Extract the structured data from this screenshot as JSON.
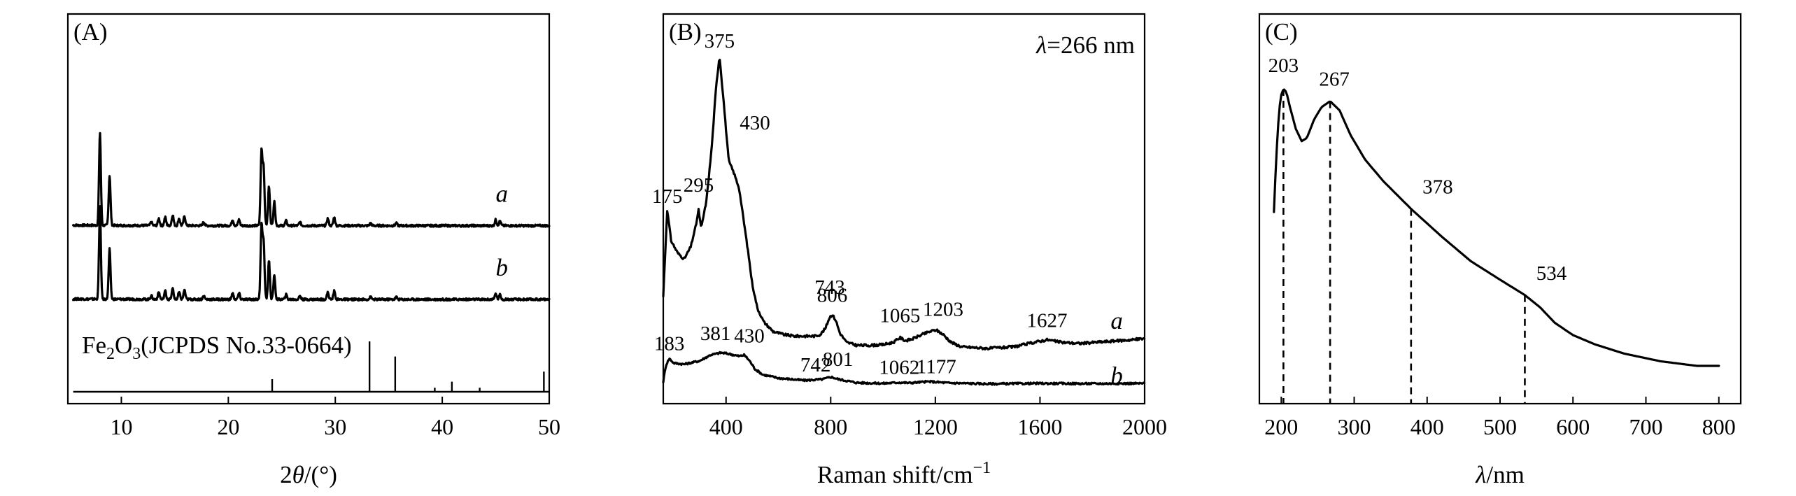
{
  "chart_data": [
    {
      "id": "A",
      "panel_label": "(A)",
      "type": "line",
      "xlabel_prefix": "2",
      "xlabel_var": "θ",
      "xlabel_unit": "/(°)",
      "ylabel": "",
      "xlim": [
        5,
        50
      ],
      "xticks": [
        10,
        20,
        30,
        40,
        50
      ],
      "grid": false,
      "series": [
        {
          "name": "a",
          "baseline": 0.62,
          "peaks": [
            [
              8.0,
              0.78
            ],
            [
              8.9,
              0.42
            ],
            [
              12.8,
              0.03
            ],
            [
              13.5,
              0.06
            ],
            [
              14.1,
              0.07
            ],
            [
              14.8,
              0.09
            ],
            [
              15.4,
              0.06
            ],
            [
              15.9,
              0.08
            ],
            [
              17.7,
              0.03
            ],
            [
              20.4,
              0.05
            ],
            [
              21.0,
              0.05
            ],
            [
              23.1,
              0.62
            ],
            [
              23.3,
              0.48
            ],
            [
              23.8,
              0.33
            ],
            [
              24.3,
              0.2
            ],
            [
              25.4,
              0.04
            ],
            [
              26.7,
              0.03
            ],
            [
              29.3,
              0.06
            ],
            [
              29.9,
              0.07
            ],
            [
              33.3,
              0.02
            ],
            [
              35.7,
              0.02
            ],
            [
              45.0,
              0.05
            ],
            [
              45.4,
              0.04
            ]
          ]
        },
        {
          "name": "b",
          "baseline": 0.0,
          "peaks": [
            [
              8.0,
              0.78
            ],
            [
              8.9,
              0.42
            ],
            [
              12.8,
              0.03
            ],
            [
              13.5,
              0.06
            ],
            [
              14.1,
              0.07
            ],
            [
              14.8,
              0.09
            ],
            [
              15.4,
              0.06
            ],
            [
              15.9,
              0.08
            ],
            [
              17.7,
              0.03
            ],
            [
              20.4,
              0.05
            ],
            [
              21.0,
              0.05
            ],
            [
              23.1,
              0.62
            ],
            [
              23.3,
              0.48
            ],
            [
              23.8,
              0.33
            ],
            [
              24.3,
              0.2
            ],
            [
              25.4,
              0.04
            ],
            [
              26.7,
              0.03
            ],
            [
              29.3,
              0.06
            ],
            [
              29.9,
              0.07
            ],
            [
              33.3,
              0.02
            ],
            [
              35.7,
              0.02
            ],
            [
              45.0,
              0.05
            ],
            [
              45.4,
              0.04
            ]
          ]
        }
      ],
      "reference": {
        "label_prefix": "Fe",
        "label_sub1": "2",
        "label_mid": "O",
        "label_sub2": "3",
        "label_suffix": "(JCPDS No.33-0664)",
        "lines": [
          [
            24.1,
            0.25
          ],
          [
            33.2,
            1.0
          ],
          [
            35.6,
            0.7
          ],
          [
            39.3,
            0.08
          ],
          [
            40.9,
            0.2
          ],
          [
            43.5,
            0.08
          ],
          [
            49.5,
            0.4
          ]
        ]
      }
    },
    {
      "id": "B",
      "panel_label": "(B)",
      "type": "line",
      "xlabel": "Raman shift/cm",
      "xlabel_sup": "−1",
      "ylabel": "",
      "xlim": [
        160,
        2000
      ],
      "xticks": [
        400,
        800,
        1200,
        1600,
        2000
      ],
      "grid": false,
      "annotation_var": "λ",
      "annotation_value": "=266 nm",
      "series": [
        {
          "name": "a",
          "points": [
            [
              160,
              0.22
            ],
            [
              175,
              0.5
            ],
            [
              190,
              0.4
            ],
            [
              215,
              0.36
            ],
            [
              240,
              0.34
            ],
            [
              265,
              0.38
            ],
            [
              285,
              0.45
            ],
            [
              295,
              0.5
            ],
            [
              305,
              0.44
            ],
            [
              325,
              0.53
            ],
            [
              345,
              0.7
            ],
            [
              362,
              0.9
            ],
            [
              375,
              1.0
            ],
            [
              390,
              0.86
            ],
            [
              410,
              0.66
            ],
            [
              430,
              0.62
            ],
            [
              450,
              0.57
            ],
            [
              470,
              0.45
            ],
            [
              485,
              0.36
            ],
            [
              500,
              0.26
            ],
            [
              520,
              0.18
            ],
            [
              545,
              0.135
            ],
            [
              580,
              0.105
            ],
            [
              620,
              0.095
            ],
            [
              660,
              0.09
            ],
            [
              700,
              0.09
            ],
            [
              740,
              0.09
            ],
            [
              760,
              0.095
            ],
            [
              780,
              0.115
            ],
            [
              795,
              0.15
            ],
            [
              806,
              0.16
            ],
            [
              820,
              0.14
            ],
            [
              835,
              0.1
            ],
            [
              860,
              0.07
            ],
            [
              900,
              0.06
            ],
            [
              950,
              0.06
            ],
            [
              1000,
              0.062
            ],
            [
              1040,
              0.07
            ],
            [
              1065,
              0.085
            ],
            [
              1085,
              0.075
            ],
            [
              1110,
              0.08
            ],
            [
              1150,
              0.095
            ],
            [
              1180,
              0.105
            ],
            [
              1203,
              0.11
            ],
            [
              1230,
              0.095
            ],
            [
              1260,
              0.07
            ],
            [
              1300,
              0.055
            ],
            [
              1400,
              0.05
            ],
            [
              1500,
              0.055
            ],
            [
              1580,
              0.07
            ],
            [
              1627,
              0.078
            ],
            [
              1680,
              0.07
            ],
            [
              1750,
              0.066
            ],
            [
              1850,
              0.072
            ],
            [
              1950,
              0.078
            ],
            [
              2000,
              0.082
            ]
          ]
        },
        {
          "name": "b",
          "points": [
            [
              160,
              0.02
            ],
            [
              170,
              0.09
            ],
            [
              183,
              0.12
            ],
            [
              200,
              0.1
            ],
            [
              240,
              0.095
            ],
            [
              300,
              0.11
            ],
            [
              340,
              0.135
            ],
            [
              381,
              0.145
            ],
            [
              410,
              0.14
            ],
            [
              430,
              0.135
            ],
            [
              450,
              0.13
            ],
            [
              470,
              0.135
            ],
            [
              490,
              0.11
            ],
            [
              510,
              0.075
            ],
            [
              540,
              0.05
            ],
            [
              600,
              0.035
            ],
            [
              700,
              0.025
            ],
            [
              742,
              0.028
            ],
            [
              770,
              0.03
            ],
            [
              801,
              0.04
            ],
            [
              830,
              0.03
            ],
            [
              900,
              0.015
            ],
            [
              1000,
              0.012
            ],
            [
              1062,
              0.016
            ],
            [
              1100,
              0.014
            ],
            [
              1177,
              0.02
            ],
            [
              1250,
              0.014
            ],
            [
              1400,
              0.01
            ],
            [
              1600,
              0.012
            ],
            [
              1800,
              0.011
            ],
            [
              2000,
              0.012
            ]
          ]
        }
      ],
      "peak_labels": [
        {
          "series": "a",
          "x": 175,
          "text": "175"
        },
        {
          "series": "a",
          "x": 295,
          "text": "295"
        },
        {
          "series": "a",
          "x": 375,
          "text": "375"
        },
        {
          "series": "a",
          "x": 430,
          "text": "430"
        },
        {
          "series": "a",
          "x": 743,
          "text": "743"
        },
        {
          "series": "a",
          "x": 806,
          "text": "806"
        },
        {
          "series": "a",
          "x": 1065,
          "text": "1065"
        },
        {
          "series": "a",
          "x": 1203,
          "text": "1203"
        },
        {
          "series": "a",
          "x": 1627,
          "text": "1627"
        },
        {
          "series": "b",
          "x": 183,
          "text": "183"
        },
        {
          "series": "b",
          "x": 381,
          "text": "381"
        },
        {
          "series": "b",
          "x": 430,
          "text": "430"
        },
        {
          "series": "b",
          "x": 742,
          "text": "742"
        },
        {
          "series": "b",
          "x": 801,
          "text": "801"
        },
        {
          "series": "b",
          "x": 1062,
          "text": "1062"
        },
        {
          "series": "b",
          "x": 1177,
          "text": "1177"
        }
      ]
    },
    {
      "id": "C",
      "panel_label": "(C)",
      "type": "line",
      "xlabel_var": "λ",
      "xlabel_unit": "/nm",
      "ylabel": "",
      "xlim": [
        170,
        830
      ],
      "xticks": [
        200,
        300,
        400,
        500,
        600,
        700,
        800
      ],
      "grid": false,
      "series": [
        {
          "name": "",
          "points": [
            [
              190,
              0.55
            ],
            [
              193,
              0.72
            ],
            [
              197,
              0.88
            ],
            [
              200,
              0.93
            ],
            [
              203,
              0.95
            ],
            [
              207,
              0.94
            ],
            [
              212,
              0.89
            ],
            [
              220,
              0.82
            ],
            [
              228,
              0.78
            ],
            [
              235,
              0.79
            ],
            [
              245,
              0.85
            ],
            [
              255,
              0.89
            ],
            [
              267,
              0.91
            ],
            [
              280,
              0.88
            ],
            [
              295,
              0.8
            ],
            [
              315,
              0.72
            ],
            [
              340,
              0.65
            ],
            [
              378,
              0.56
            ],
            [
              420,
              0.47
            ],
            [
              460,
              0.39
            ],
            [
              500,
              0.33
            ],
            [
              534,
              0.28
            ],
            [
              555,
              0.24
            ],
            [
              575,
              0.19
            ],
            [
              600,
              0.15
            ],
            [
              630,
              0.12
            ],
            [
              670,
              0.09
            ],
            [
              720,
              0.065
            ],
            [
              770,
              0.05
            ],
            [
              800,
              0.05
            ]
          ]
        }
      ],
      "markers": [
        {
          "x": 203,
          "text": "203"
        },
        {
          "x": 267,
          "text": "267"
        },
        {
          "x": 378,
          "text": "378"
        },
        {
          "x": 534,
          "text": "534"
        }
      ]
    }
  ]
}
